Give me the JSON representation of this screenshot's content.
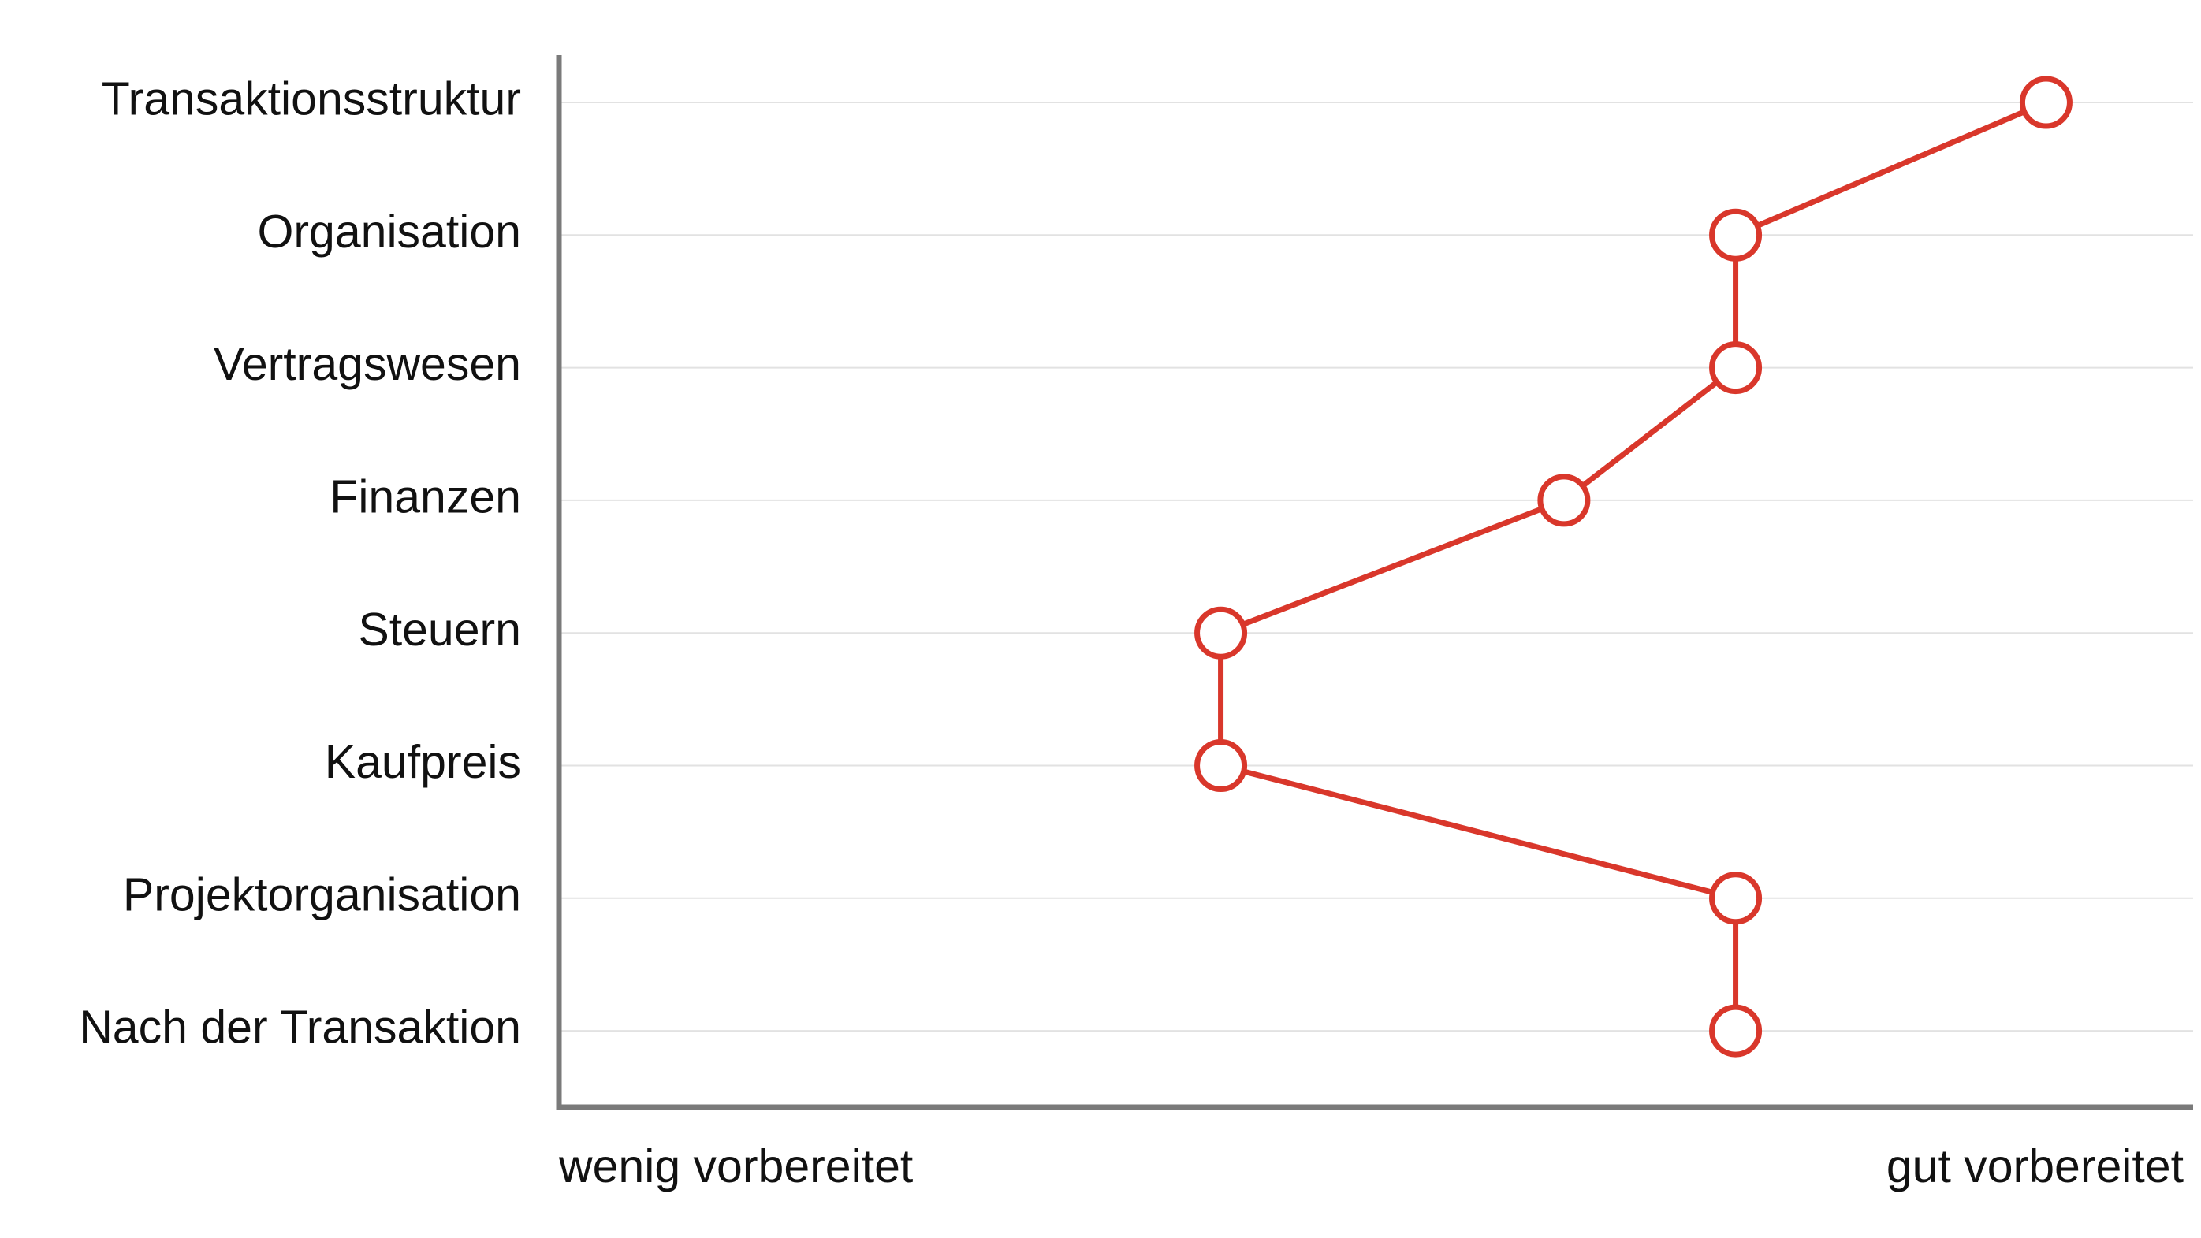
{
  "chart_data": {
    "type": "line",
    "orientation": "horizontal",
    "categories": [
      "Transaktionsstruktur",
      "Organisation",
      "Vertragswesen",
      "Finanzen",
      "Steuern",
      "Kaufpreis",
      "Projektorganisation",
      "Nach der Transaktion"
    ],
    "values": [
      91,
      72,
      72,
      61.5,
      40.5,
      40.5,
      72,
      72
    ],
    "x_range": [
      0,
      100
    ],
    "x_min_label": "wenig vorbereitet",
    "x_max_label": "gut vorbereitet",
    "grid": "horizontal",
    "series_color": "#d9372b",
    "axis_color": "#7a7a7a",
    "grid_color": "#e2e2e2"
  }
}
